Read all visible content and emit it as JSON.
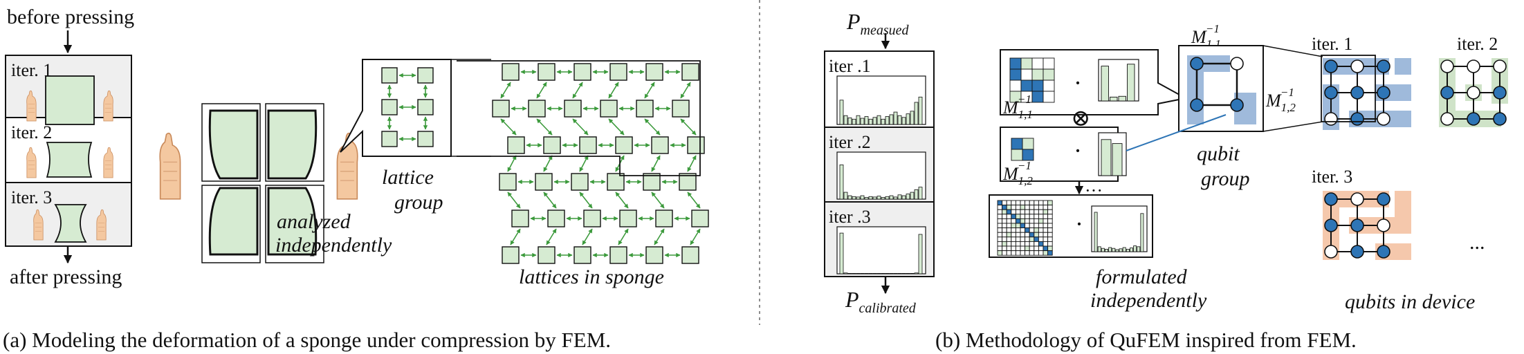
{
  "panel_a": {
    "top_label": "before pressing",
    "bottom_label": "after pressing",
    "iter_labels": [
      "iter. 1",
      "iter. 2",
      "iter. 3"
    ],
    "analyzed_line1": "analyzed",
    "analyzed_line2": "independently",
    "lattice_line1": "lattice",
    "lattice_line2": "group",
    "sponge_label": "lattices in sponge",
    "caption": "(a) Modeling the deformation of a sponge under compression by FEM."
  },
  "panel_b": {
    "p_measured_base": "P",
    "p_measured_sub": "measued",
    "p_calibrated_base": "P",
    "p_calibrated_sub": "calibrated",
    "iter_labels": [
      "iter .1",
      "iter .2",
      "iter .3"
    ],
    "m11": "M",
    "m11_sub": "1,1",
    "m12": "M",
    "m12_sub": "1,2",
    "m_sup": "−1",
    "dot": "·",
    "otimes": "⊗",
    "ellipsis": "···",
    "qubit_line1": "qubit",
    "qubit_line2": "group",
    "formulated_line1": "formulated",
    "formulated_line2": "independently",
    "device_iter_labels": [
      "iter. 1",
      "iter. 2",
      "iter. 3"
    ],
    "device_ellipsis": "...",
    "device_label": "qubits in device",
    "caption": "(b) Methodology of QuFEM inspired from FEM."
  },
  "colors": {
    "green_fill": "#d6ebd2",
    "green_arrow": "#3c9a3c",
    "blue_qubit": "#2e75b6",
    "blue_group": "#9fbadb",
    "green_group": "#cfe3c8",
    "orange_group": "#f5c8ac",
    "grey_panel": "#efefef",
    "hand": "#f4c8a0"
  }
}
